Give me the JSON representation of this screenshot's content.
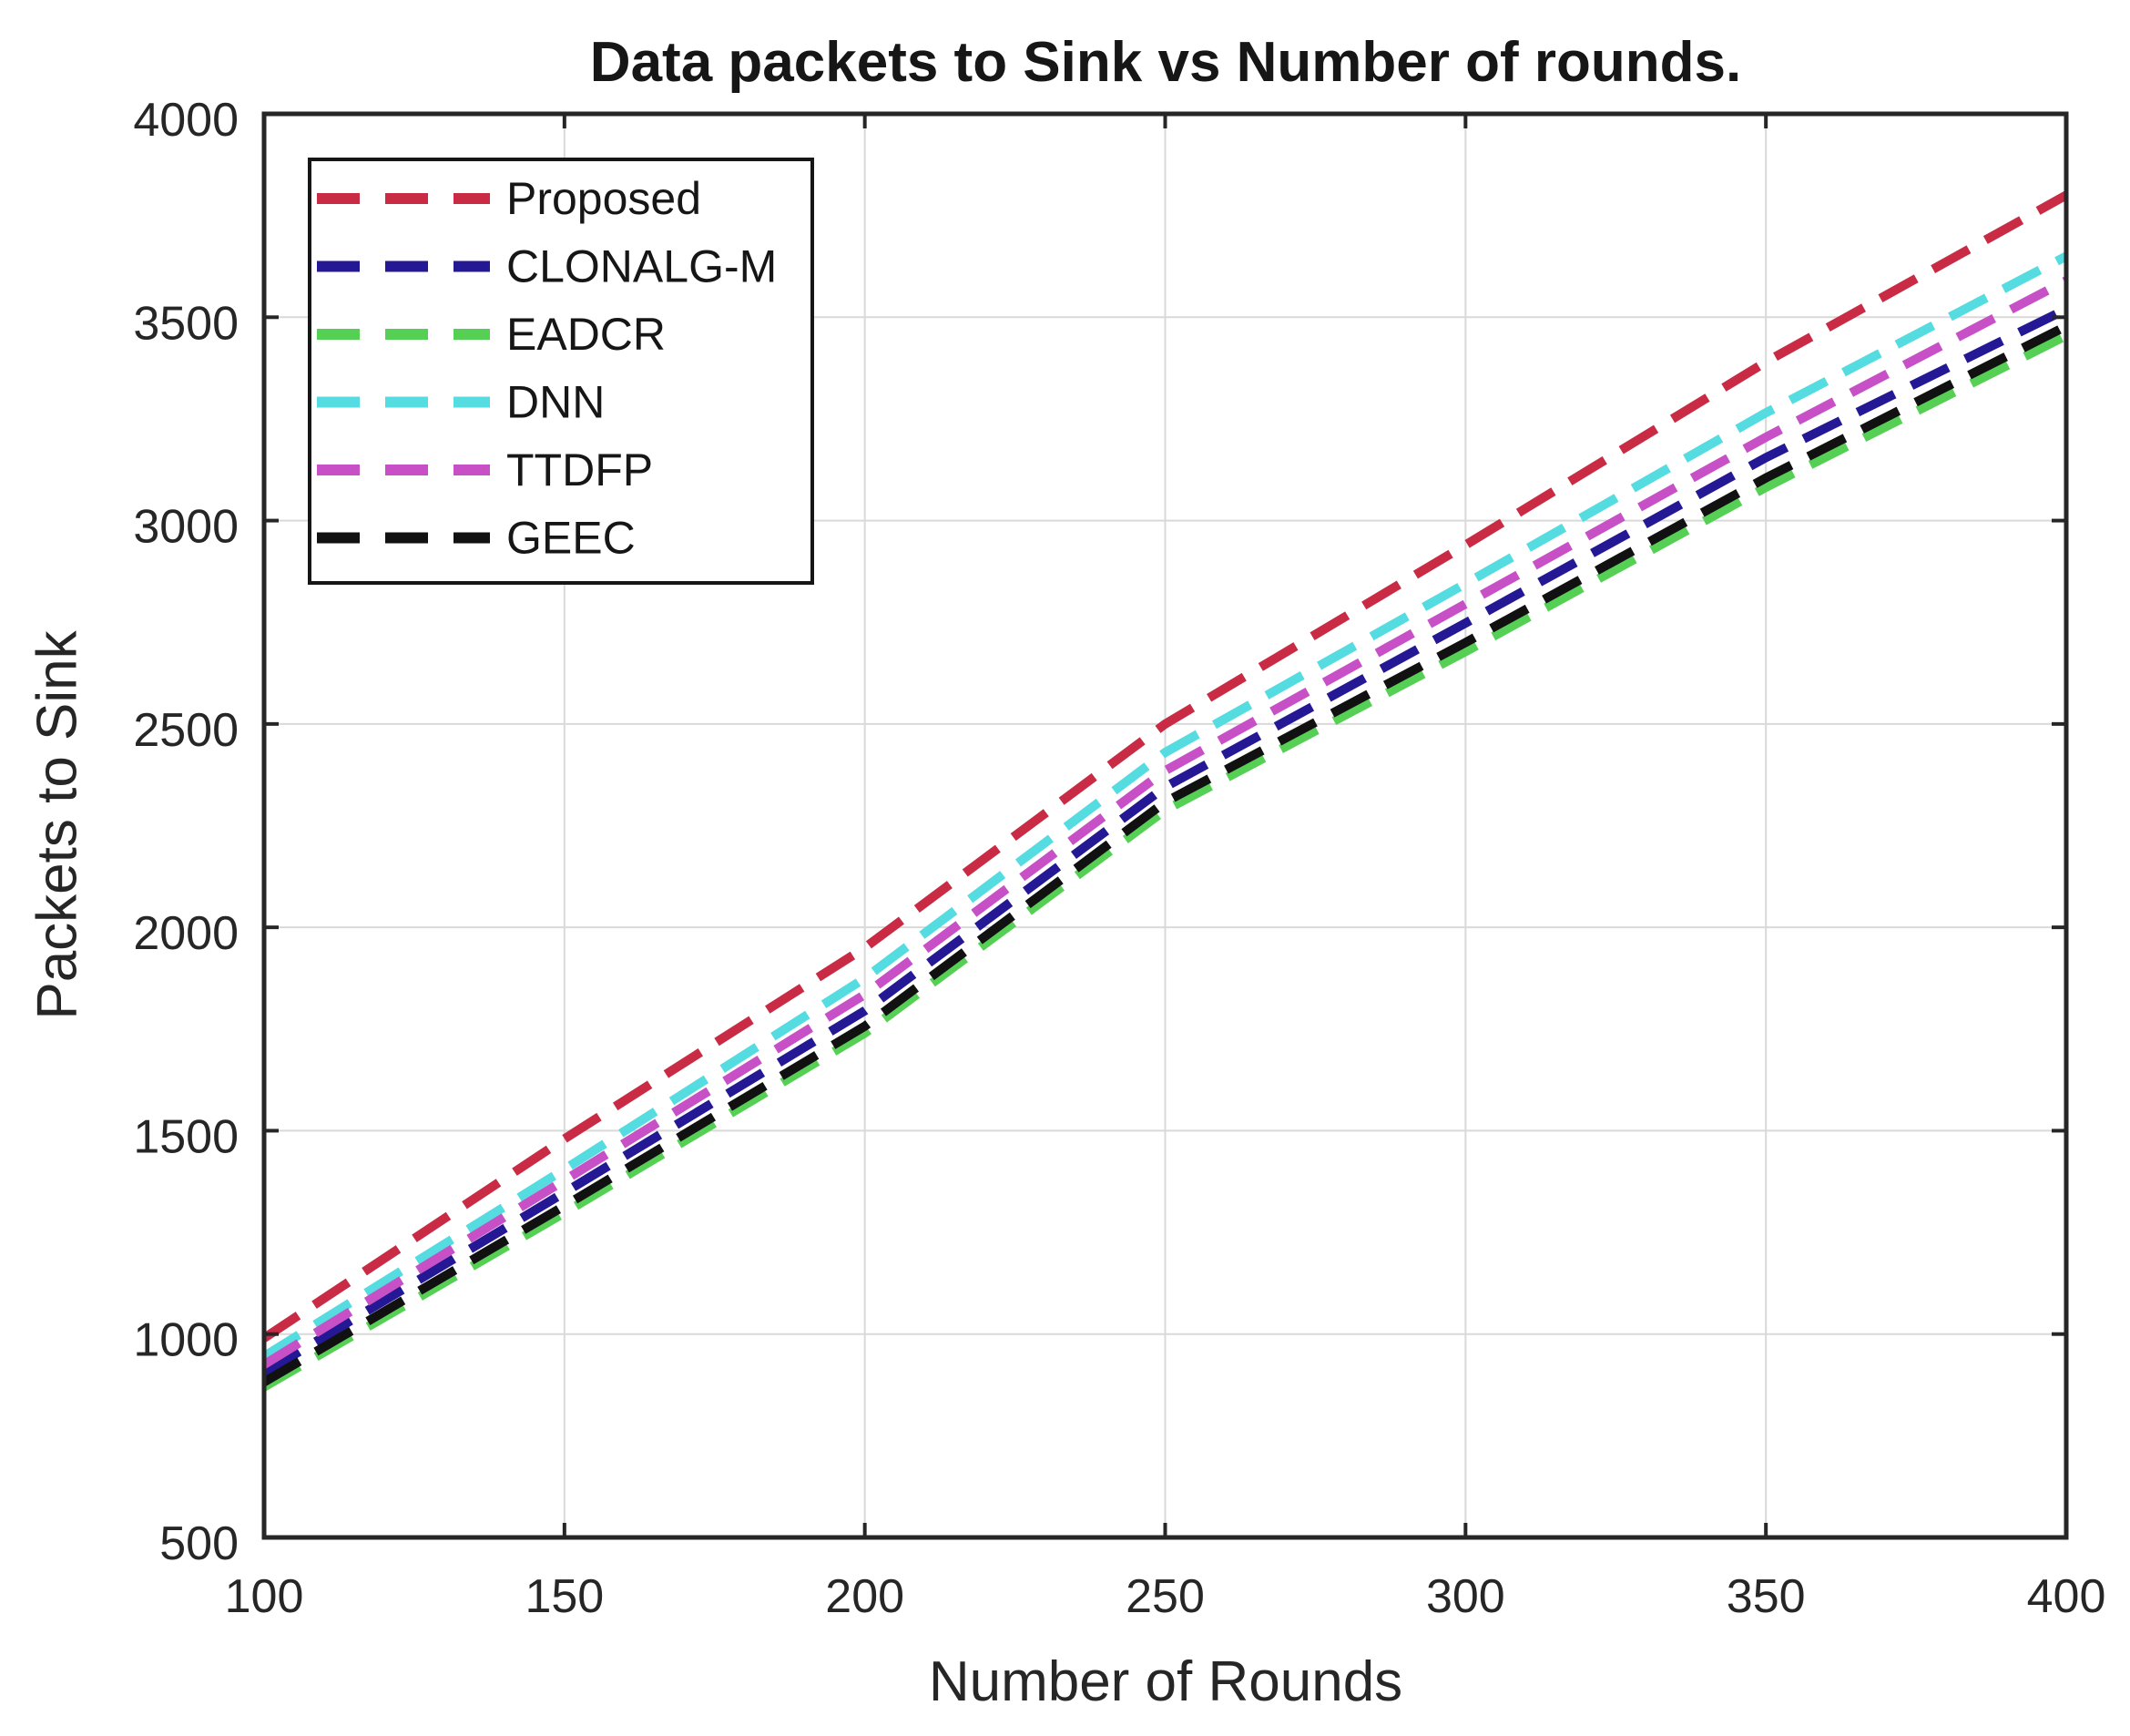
{
  "chart_data": {
    "type": "line",
    "title": "Data packets to Sink vs Number of rounds.",
    "xlabel": "Number of Rounds",
    "ylabel": "Packets to Sink",
    "xlim": [
      100,
      400
    ],
    "ylim": [
      500,
      4000
    ],
    "xticks": [
      100,
      150,
      200,
      250,
      300,
      350,
      400
    ],
    "yticks": [
      500,
      1000,
      1500,
      2000,
      2500,
      3000,
      3500,
      4000
    ],
    "grid": true,
    "legend_position": "top-left",
    "x": [
      100,
      150,
      200,
      250,
      300,
      350,
      400
    ],
    "series": [
      {
        "name": "proposed",
        "label": "Proposed",
        "color": "#c92b45",
        "linestyle": "dashed",
        "values": [
          990,
          1480,
          1950,
          2500,
          2940,
          3390,
          3800
        ]
      },
      {
        "name": "clonalg-m",
        "label": "CLONALG-M",
        "color": "#241895",
        "linestyle": "dashed",
        "values": [
          905,
          1348,
          1795,
          2345,
          2748,
          3155,
          3520
        ]
      },
      {
        "name": "eadcr",
        "label": "EADCR",
        "color": "#55d055",
        "linestyle": "dashed",
        "values": [
          870,
          1298,
          1740,
          2288,
          2678,
          3082,
          3455
        ]
      },
      {
        "name": "dnn",
        "label": "DNN",
        "color": "#55dce0",
        "linestyle": "dashed",
        "values": [
          945,
          1405,
          1875,
          2430,
          2845,
          3265,
          3650
        ]
      },
      {
        "name": "ttdfp",
        "label": "TTDFP",
        "color": "#c750c7",
        "linestyle": "dashed",
        "values": [
          925,
          1378,
          1835,
          2385,
          2795,
          3205,
          3590
        ]
      },
      {
        "name": "geec",
        "label": "GEEC",
        "color": "#111111",
        "linestyle": "dashed",
        "values": [
          882,
          1315,
          1757,
          2308,
          2700,
          3105,
          3478
        ]
      }
    ],
    "colors": {
      "axis": "#262626",
      "grid": "#d9d9d9",
      "text": "#262626",
      "legend_border": "#161616",
      "legend_bg": "#ffffff"
    }
  }
}
